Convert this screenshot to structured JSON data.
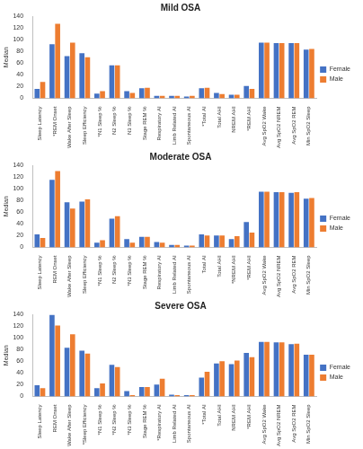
{
  "chart_data": [
    {
      "type": "bar",
      "title": "Mild OSA",
      "ylabel": "Median",
      "categories": [
        "Sleep Latency",
        "*REM Onset",
        "Wake After Sleep",
        "Sleep Efficiency",
        "*N1 Sleep %",
        "N2 Sleep %",
        "N3 Sleep %",
        "Stage REM %",
        "Respiratory AI",
        "Limb Related AI",
        "Spontaneous AI",
        "*Total AI",
        "Total AHI",
        "NREM AHI",
        "*REM AHI",
        "Avg SpO2 Wake",
        "Avg SpO2 NREM",
        "Avg SpO2 REM",
        "Min SpO2 Sleep"
      ],
      "series": [
        {
          "name": "Female",
          "color": "#4472c4",
          "values": [
            16,
            92,
            72,
            77,
            8,
            56,
            12,
            17,
            4,
            4,
            3,
            17,
            9,
            6,
            21,
            95,
            94,
            94,
            83
          ]
        },
        {
          "name": "Male",
          "color": "#ed7d31",
          "values": [
            28,
            127,
            95,
            70,
            12,
            56,
            9,
            18,
            4,
            4,
            4,
            18,
            7,
            6,
            16,
            95,
            94,
            94,
            84
          ]
        }
      ],
      "ylim": [
        0,
        140
      ],
      "yticks": [
        0,
        20,
        40,
        60,
        80,
        100,
        120,
        140
      ],
      "grid": false,
      "legend": "right"
    },
    {
      "type": "bar",
      "title": "Moderate OSA",
      "ylabel": "Median",
      "categories": [
        "Sleep Latency",
        "REM Onset",
        "Wake After Sleep",
        "Sleep Efficiency",
        "*N1 Sleep %",
        "N2 Sleep %",
        "*N3 Sleep %",
        "Stage REM %",
        "Respiratory AI",
        "Limb Related AI",
        "Spontaneous AI",
        "Total AI",
        "Total AHI",
        "*NREM AHI",
        "*REM AHI",
        "Avg SpO2 Wake",
        "Avg SpO2 NREM",
        "Avg SpO2 REM",
        "Min SpO2 Sleep"
      ],
      "series": [
        {
          "name": "Female",
          "color": "#4472c4",
          "values": [
            22,
            115,
            77,
            78,
            8,
            49,
            14,
            18,
            9,
            4,
            3,
            22,
            20,
            14,
            43,
            95,
            94,
            93,
            83
          ]
        },
        {
          "name": "Male",
          "color": "#ed7d31",
          "values": [
            16,
            130,
            66,
            82,
            12,
            53,
            8,
            18,
            8,
            4,
            3,
            20,
            20,
            19,
            25,
            95,
            94,
            94,
            84
          ]
        }
      ],
      "ylim": [
        0,
        140
      ],
      "yticks": [
        0,
        20,
        40,
        60,
        80,
        100,
        120,
        140
      ],
      "grid": false,
      "legend": "right"
    },
    {
      "type": "bar",
      "title": "Severe OSA",
      "ylabel": "Median",
      "categories": [
        "Sleep Latency",
        "REM Onset",
        "Wake After Sleep",
        "*Sleep Efficiency",
        "*N1 Sleep %",
        "*N2 Sleep %",
        "*N3 Sleep %",
        "Stage REM %",
        "*Respiratory AI",
        "Limb Related AI",
        "Spontaneous AI",
        "*Total AI",
        "Total AHI",
        "NREM AHI",
        "*REM AHI",
        "Avg SpO2 Wake",
        "Avg SpO2 NREM",
        "Avg SpO2 REM",
        "Min SpO2 Sleep"
      ],
      "series": [
        {
          "name": "Female",
          "color": "#4472c4",
          "values": [
            19,
            139,
            83,
            78,
            14,
            54,
            9,
            16,
            20,
            3,
            2,
            32,
            56,
            55,
            74,
            93,
            92,
            89,
            71
          ]
        },
        {
          "name": "Male",
          "color": "#ed7d31",
          "values": [
            14,
            121,
            106,
            73,
            22,
            50,
            2,
            16,
            30,
            2,
            2,
            42,
            60,
            61,
            67,
            93,
            92,
            90,
            71
          ]
        }
      ],
      "ylim": [
        0,
        140
      ],
      "yticks": [
        0,
        20,
        40,
        60,
        80,
        100,
        120,
        140
      ],
      "grid": false,
      "legend": "right"
    }
  ]
}
